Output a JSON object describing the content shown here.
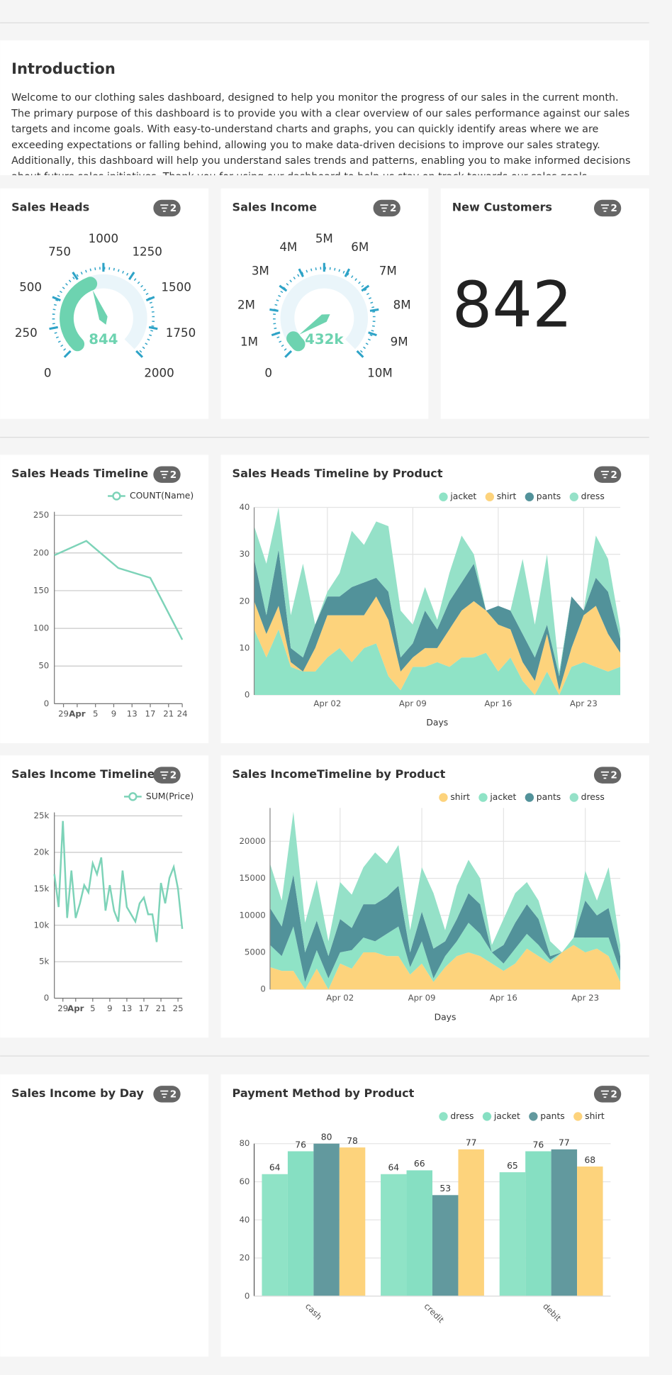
{
  "intro": {
    "title": "Introduction",
    "text": "Welcome to our clothing sales dashboard, designed to help you monitor the progress of our sales in the current month. The primary purpose of this dashboard is to provide you with a clear overview of our sales performance against our sales targets and income goals. With easy-to-understand charts and graphs, you can quickly identify areas where we are exceeding expectations or falling behind, allowing you to make data-driven decisions to improve our sales strategy. Additionally, this dashboard will help you understand sales trends and patterns, enabling you to make informed decisions about future sales initiatives. Thank you for using our dashboard to help us stay on track towards our sales goals."
  },
  "chart_data": [
    {
      "type": "gauge",
      "title": "Sales Heads",
      "filter_badge": 2,
      "value": 844,
      "ylim": [
        0,
        2000
      ],
      "yticks": [
        0,
        250,
        500,
        750,
        1000,
        1250,
        1500,
        1750,
        2000
      ],
      "color": "#6dd3b0",
      "tick_color": "#2ea3c7"
    },
    {
      "type": "gauge",
      "title": "Sales Income",
      "filter_badge": 2,
      "value": 432000,
      "value_label": "432k",
      "ylim": [
        0,
        10000000
      ],
      "yticks": [
        0,
        {
          "value": 1000000,
          "label": "1M"
        },
        {
          "value": 2000000,
          "label": "2M"
        },
        {
          "value": 3000000,
          "label": "3M"
        },
        {
          "value": 4000000,
          "label": "4M"
        },
        {
          "value": 5000000,
          "label": "5M"
        },
        {
          "value": 6000000,
          "label": "6M"
        },
        {
          "value": 7000000,
          "label": "7M"
        },
        {
          "value": 8000000,
          "label": "8M"
        },
        {
          "value": 9000000,
          "label": "9M"
        },
        {
          "value": 10000000,
          "label": "10M"
        }
      ],
      "color": "#6dd3b0",
      "tick_color": "#2ea3c7"
    },
    {
      "type": "number",
      "title": "New Customers",
      "filter_badge": 2,
      "value": 842
    },
    {
      "type": "line",
      "title": "Sales Heads Timeline",
      "filter_badge": 2,
      "x": [
        "Mar 27",
        "Apr 03",
        "Apr 10",
        "Apr 17",
        "Apr 24"
      ],
      "xlim": [
        "Mar 27",
        "Apr 24"
      ],
      "xticks": [
        {
          "value": "Mar 29",
          "label": "29"
        },
        {
          "value": "Apr 01",
          "label": "Apr"
        },
        {
          "value": "Apr 05",
          "label": "5"
        },
        {
          "value": "Apr 09",
          "label": "9"
        },
        {
          "value": "Apr 13",
          "label": "13"
        },
        {
          "value": "Apr 17",
          "label": "17"
        },
        {
          "value": "Apr 21",
          "label": "21"
        },
        {
          "value": "Apr 24",
          "label": "24"
        }
      ],
      "ylim": [
        0,
        250
      ],
      "yticks": [
        0,
        50,
        100,
        150,
        200,
        250
      ],
      "grid": true,
      "series": [
        {
          "name": "COUNT(Name)",
          "color": "#7dd3b8",
          "values": [
            197,
            216,
            180,
            167,
            85
          ]
        }
      ]
    },
    {
      "type": "area",
      "title": "Sales Heads Timeline by Product",
      "filter_badge": 2,
      "xlabel": "Days",
      "x": [
        "Mar 27",
        "Mar 28",
        "Mar 29",
        "Mar 30",
        "Mar 31",
        "Apr 01",
        "Apr 02",
        "Apr 03",
        "Apr 04",
        "Apr 05",
        "Apr 06",
        "Apr 07",
        "Apr 08",
        "Apr 09",
        "Apr 10",
        "Apr 11",
        "Apr 12",
        "Apr 13",
        "Apr 14",
        "Apr 15",
        "Apr 16",
        "Apr 17",
        "Apr 18",
        "Apr 19",
        "Apr 20",
        "Apr 21",
        "Apr 22",
        "Apr 23",
        "Apr 24",
        "Apr 25",
        "Apr 26"
      ],
      "xlim": [
        "Mar 27",
        "Apr 26"
      ],
      "xticks": [
        "Apr 02",
        "Apr 09",
        "Apr 16",
        "Apr 23"
      ],
      "ylim": [
        0,
        40
      ],
      "yticks": [
        0,
        10,
        20,
        30,
        40
      ],
      "grid": true,
      "series": [
        {
          "name": "jacket",
          "color": "#8fe3c6",
          "values": [
            14,
            8,
            14,
            6,
            5,
            5,
            8,
            10,
            7,
            10,
            11,
            4,
            1,
            6,
            6,
            7,
            6,
            8,
            8,
            9,
            5,
            8,
            3,
            0,
            5,
            0,
            6,
            7,
            6,
            5,
            6
          ]
        },
        {
          "name": "shirt",
          "color": "#fdd37c",
          "values": [
            6,
            5,
            5,
            1,
            0,
            5,
            9,
            7,
            10,
            7,
            10,
            12,
            4,
            2,
            4,
            3,
            8,
            10,
            12,
            9,
            10,
            6,
            4,
            3,
            8,
            1,
            4,
            10,
            13,
            8,
            3
          ]
        },
        {
          "name": "pants",
          "color": "#52929a",
          "values": [
            9,
            4,
            12,
            3,
            3,
            5,
            4,
            4,
            6,
            7,
            4,
            6,
            3,
            3,
            8,
            4,
            6,
            6,
            8,
            0,
            4,
            4,
            6,
            5,
            2,
            3,
            11,
            1,
            6,
            9,
            3
          ]
        },
        {
          "name": "dress",
          "color": "#95e1c8",
          "values": [
            7,
            11,
            9,
            7,
            20,
            0,
            1,
            5,
            12,
            8,
            12,
            14,
            10,
            4,
            5,
            2,
            6,
            10,
            2,
            0,
            0,
            0,
            16,
            7,
            15,
            1,
            0,
            0,
            9,
            7,
            2
          ]
        }
      ]
    },
    {
      "type": "line",
      "title": "Sales Income Timeline",
      "filter_badge": 2,
      "x": [
        "Mar 27",
        "Mar 28",
        "Mar 29",
        "Mar 30",
        "Mar 31",
        "Apr 01",
        "Apr 02",
        "Apr 03",
        "Apr 04",
        "Apr 05",
        "Apr 06",
        "Apr 07",
        "Apr 08",
        "Apr 09",
        "Apr 10",
        "Apr 11",
        "Apr 12",
        "Apr 13",
        "Apr 14",
        "Apr 15",
        "Apr 16",
        "Apr 17",
        "Apr 18",
        "Apr 19",
        "Apr 20",
        "Apr 21",
        "Apr 22",
        "Apr 23",
        "Apr 24",
        "Apr 25",
        "Apr 26"
      ],
      "xlim": [
        "Mar 27",
        "Apr 26"
      ],
      "xticks": [
        {
          "value": "Mar 29",
          "label": "29"
        },
        {
          "value": "Apr 01",
          "label": "Apr"
        },
        {
          "value": "Apr 05",
          "label": "5"
        },
        {
          "value": "Apr 09",
          "label": "9"
        },
        {
          "value": "Apr 13",
          "label": "13"
        },
        {
          "value": "Apr 17",
          "label": "17"
        },
        {
          "value": "Apr 21",
          "label": "21"
        },
        {
          "value": "Apr 25",
          "label": "25"
        }
      ],
      "ylim": [
        0,
        25000
      ],
      "yticks": [
        0,
        {
          "value": 5000,
          "label": "5k"
        },
        {
          "value": 10000,
          "label": "10k"
        },
        {
          "value": 15000,
          "label": "15k"
        },
        {
          "value": 20000,
          "label": "20k"
        },
        {
          "value": 25000,
          "label": "25k"
        }
      ],
      "grid": true,
      "series": [
        {
          "name": "SUM(Price)",
          "color": "#7dd3b8",
          "values": [
            17000,
            12500,
            24300,
            11000,
            17500,
            11000,
            13000,
            15500,
            14500,
            18500,
            17000,
            19300,
            12000,
            15500,
            12000,
            10500,
            17500,
            12500,
            11500,
            10500,
            13000,
            13800,
            11500,
            11500,
            7700,
            15800,
            13000,
            16500,
            18000,
            15000,
            9500
          ]
        }
      ]
    },
    {
      "type": "area",
      "title": "Sales IncomeTimeline by Product",
      "filter_badge": 2,
      "xlabel": "Days",
      "x": [
        "Mar 27",
        "Mar 28",
        "Mar 29",
        "Mar 30",
        "Mar 31",
        "Apr 01",
        "Apr 02",
        "Apr 03",
        "Apr 04",
        "Apr 05",
        "Apr 06",
        "Apr 07",
        "Apr 08",
        "Apr 09",
        "Apr 10",
        "Apr 11",
        "Apr 12",
        "Apr 13",
        "Apr 14",
        "Apr 15",
        "Apr 16",
        "Apr 17",
        "Apr 18",
        "Apr 19",
        "Apr 20",
        "Apr 21",
        "Apr 22",
        "Apr 23",
        "Apr 24",
        "Apr 25",
        "Apr 26"
      ],
      "xlim": [
        "Mar 27",
        "Apr 26"
      ],
      "xticks": [
        "Apr 02",
        "Apr 09",
        "Apr 16",
        "Apr 23"
      ],
      "ylim": [
        0,
        24500
      ],
      "yticks": [
        0,
        5000,
        10000,
        15000,
        20000
      ],
      "grid": true,
      "series": [
        {
          "name": "shirt",
          "color": "#fdd37c",
          "values": [
            3000,
            2500,
            2500,
            0,
            2800,
            0,
            3500,
            2800,
            5000,
            5000,
            4500,
            4500,
            2000,
            3500,
            1000,
            3000,
            4500,
            5000,
            4500,
            3500,
            2500,
            3500,
            5500,
            4500,
            3500,
            5000,
            6000,
            5000,
            5500,
            4500,
            1000
          ]
        },
        {
          "name": "jacket",
          "color": "#8fe3c6",
          "values": [
            3000,
            2000,
            6000,
            1000,
            2500,
            1500,
            1500,
            2500,
            2000,
            1500,
            3000,
            4000,
            1000,
            3000,
            500,
            1500,
            2000,
            4000,
            3000,
            1500,
            1000,
            2000,
            2000,
            1500,
            500,
            0,
            1000,
            2000,
            1500,
            2500,
            1500
          ]
        },
        {
          "name": "pants",
          "color": "#52929a",
          "values": [
            5000,
            4000,
            7000,
            4000,
            4000,
            3000,
            4500,
            3000,
            4500,
            5000,
            5000,
            5500,
            2000,
            4000,
            4000,
            2000,
            3000,
            4000,
            4000,
            0,
            2500,
            3500,
            4000,
            3500,
            500,
            0,
            0,
            5000,
            3000,
            4000,
            2000
          ]
        },
        {
          "name": "dress",
          "color": "#95e1c8",
          "values": [
            6000,
            3500,
            8500,
            4000,
            5500,
            2000,
            5000,
            4500,
            5000,
            7000,
            4500,
            5500,
            3000,
            6000,
            7500,
            1500,
            4500,
            4500,
            3500,
            1000,
            3500,
            4000,
            3000,
            2500,
            2000,
            0,
            0,
            4000,
            2000,
            5500,
            1500
          ]
        }
      ]
    },
    {
      "title": "Sales Income by Day",
      "filter_badge": 2
    },
    {
      "type": "bar",
      "title": "Payment Method by Product",
      "filter_badge": 2,
      "categories": [
        "cash",
        "credit",
        "debit"
      ],
      "ylim": [
        0,
        80
      ],
      "yticks": [
        0,
        20,
        40,
        60,
        80
      ],
      "grid": true,
      "series": [
        {
          "name": "dress",
          "color": "#8fe3c6",
          "values": [
            64,
            64,
            65
          ]
        },
        {
          "name": "jacket",
          "color": "#86dfc2",
          "values": [
            76,
            66,
            76
          ]
        },
        {
          "name": "pants",
          "color": "#62999e",
          "values": [
            80,
            53,
            77
          ]
        },
        {
          "name": "shirt",
          "color": "#fdd37c",
          "values": [
            78,
            77,
            68
          ]
        }
      ]
    }
  ]
}
